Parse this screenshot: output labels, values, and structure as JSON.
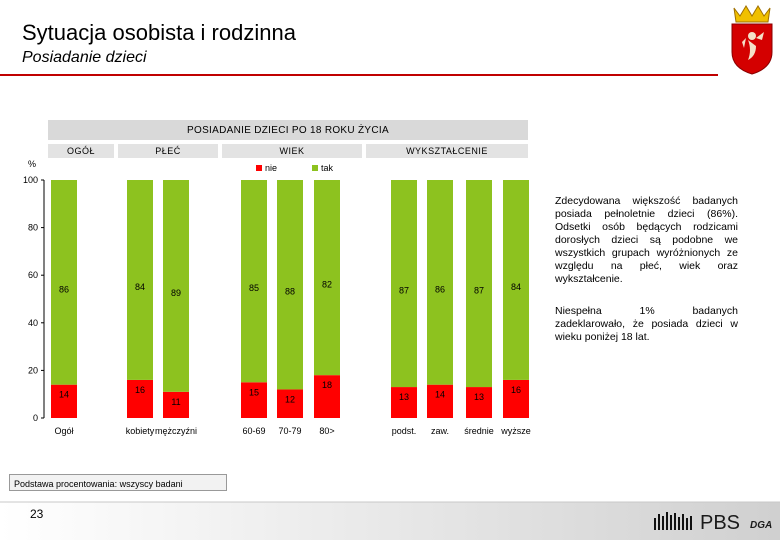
{
  "header": {
    "title": "Sytuacja osobista i rodzinna",
    "subtitle": "Posiadanie dzieci"
  },
  "chart_data": {
    "type": "bar",
    "stacked": true,
    "title": "POSIADANIE DZIECI PO 18 ROKU ŻYCIA",
    "ylabel": "%",
    "ylim": [
      0,
      100
    ],
    "yticks": [
      0,
      20,
      40,
      60,
      80,
      100
    ],
    "groups": [
      {
        "label": "OGÓŁ",
        "categories": [
          "Ogół"
        ]
      },
      {
        "label": "PŁEĆ",
        "categories": [
          "kobiety",
          "mężczyźni"
        ]
      },
      {
        "label": "WIEK",
        "categories": [
          "60-69",
          "70-79",
          "80>"
        ]
      },
      {
        "label": "WYKSZTAŁCENIE",
        "categories": [
          "podst.",
          "zaw.",
          "średnie",
          "wyższe"
        ]
      }
    ],
    "categories": [
      "Ogół",
      "kobiety",
      "mężczyźni",
      "60-69",
      "70-79",
      "80>",
      "podst.",
      "zaw.",
      "średnie",
      "wyższe"
    ],
    "series": [
      {
        "name": "nie",
        "color": "#ff0000",
        "values": [
          14,
          16,
          11,
          15,
          12,
          18,
          13,
          14,
          13,
          16
        ]
      },
      {
        "name": "tak",
        "color": "#8dc21f",
        "values": [
          86,
          84,
          89,
          85,
          88,
          82,
          87,
          86,
          87,
          84
        ]
      }
    ],
    "legend_position": "top-center",
    "grid": false
  },
  "description": [
    "Zdecydowana większość badanych posiada pełnoletnie dzieci (86%). Odsetki osób będących rodzicami dorosłych dzieci są podobne we wszystkich grupach wyróżnionych ze względu na płeć, wiek oraz wykształcenie.",
    "Niespełna 1% badanych zadeklarowało, że posiada dzieci w wieku poniżej 18 lat."
  ],
  "base_note": "Podstawa procentowania: wszyscy badani",
  "footer": {
    "page_number": "23",
    "logo_text": "PBS",
    "logo_suffix": "DGA"
  },
  "colors": {
    "accent": "#c00000",
    "nie": "#ff0000",
    "tak": "#8dc21f"
  }
}
